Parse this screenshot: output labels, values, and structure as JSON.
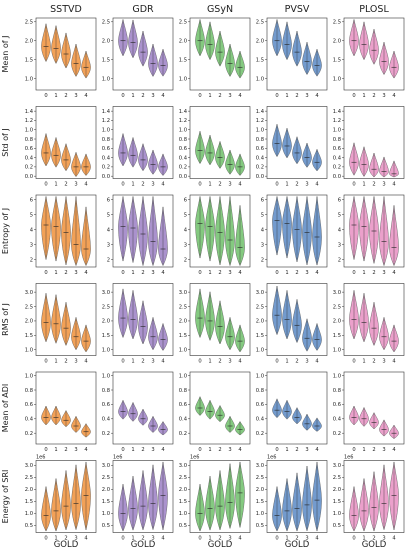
{
  "figure": {
    "columns": [
      "SSTVD",
      "GDR",
      "GSyN",
      "PVSV",
      "PLOSL"
    ],
    "rows": [
      "Mean of J",
      "Std of J",
      "Entropy of J",
      "RMS of J",
      "Mean of ADI",
      "Energy of SRI"
    ],
    "x_label": "GOLD",
    "x_ticks": [
      "0",
      "1",
      "2",
      "3",
      "4"
    ]
  },
  "colors": {
    "SSTVD": "#f0903a",
    "GDR": "#9b7fc4",
    "GSyN": "#6fbf6a",
    "PVSV": "#5b8ac6",
    "PLOSL": "#e78fc2"
  },
  "chart_data": {
    "type": "violin",
    "columns": [
      "SSTVD",
      "GDR",
      "GSyN",
      "PVSV",
      "PLOSL"
    ],
    "categories": [
      "0",
      "1",
      "2",
      "3",
      "4"
    ],
    "xlabel": "GOLD",
    "rows": [
      {
        "ylabel": "Mean of J",
        "ylim": [
          0.7,
          2.6
        ],
        "yticks": [
          "1.0",
          "1.5",
          "2.0",
          "2.5"
        ],
        "yticks_num": [
          1.0,
          1.5,
          2.0,
          2.5
        ],
        "series": {
          "SSTVD": [
            1.85,
            1.8,
            1.65,
            1.4,
            1.3
          ],
          "GDR": [
            2.0,
            1.95,
            1.7,
            1.4,
            1.35
          ],
          "GSyN": [
            2.0,
            1.9,
            1.7,
            1.4,
            1.3
          ],
          "PVSV": [
            2.0,
            1.9,
            1.7,
            1.45,
            1.35
          ],
          "PLOSL": [
            2.0,
            1.9,
            1.75,
            1.45,
            1.3
          ]
        },
        "spread": [
          0.7,
          0.7,
          0.65,
          0.6,
          0.5
        ]
      },
      {
        "ylabel": "Std of J",
        "ylim": [
          -0.05,
          1.5
        ],
        "yticks": [
          "0.0",
          "0.2",
          "0.4",
          "0.6",
          "0.8",
          "1.0",
          "1.2",
          "1.4"
        ],
        "yticks_num": [
          0.0,
          0.2,
          0.4,
          0.6,
          0.8,
          1.0,
          1.2,
          1.4
        ],
        "series": {
          "SSTVD": [
            0.5,
            0.45,
            0.35,
            0.2,
            0.2
          ],
          "GDR": [
            0.5,
            0.45,
            0.35,
            0.25,
            0.2
          ],
          "GSyN": [
            0.55,
            0.5,
            0.4,
            0.25,
            0.2
          ],
          "PVSV": [
            0.7,
            0.65,
            0.5,
            0.4,
            0.3
          ],
          "PLOSL": [
            0.3,
            0.25,
            0.15,
            0.1,
            0.05
          ]
        },
        "spread": [
          0.6,
          0.55,
          0.5,
          0.45,
          0.4
        ]
      },
      {
        "ylabel": "Entropy of J",
        "ylim": [
          1.5,
          6.3
        ],
        "yticks": [
          "2",
          "3",
          "4",
          "5",
          "6"
        ],
        "yticks_num": [
          2,
          3,
          4,
          5,
          6
        ],
        "series": {
          "SSTVD": [
            4.3,
            4.2,
            3.8,
            3.0,
            2.7
          ],
          "GDR": [
            4.2,
            4.1,
            3.7,
            3.2,
            2.7
          ],
          "GSyN": [
            4.4,
            4.2,
            3.8,
            3.3,
            2.8
          ],
          "PVSV": [
            4.6,
            4.4,
            4.0,
            3.8,
            3.5
          ],
          "PLOSL": [
            4.3,
            4.2,
            3.9,
            3.2,
            2.8
          ]
        },
        "spread": [
          1.6,
          1.6,
          1.5,
          1.5,
          1.3
        ]
      },
      {
        "ylabel": "RMS of J",
        "ylim": [
          0.8,
          3.3
        ],
        "yticks": [
          "1.0",
          "1.5",
          "2.0",
          "2.5",
          "3.0"
        ],
        "yticks_num": [
          1.0,
          1.5,
          2.0,
          2.5,
          3.0
        ],
        "series": {
          "SSTVD": [
            1.95,
            1.9,
            1.75,
            1.45,
            1.3
          ],
          "GDR": [
            2.1,
            2.05,
            1.8,
            1.45,
            1.35
          ],
          "GSyN": [
            2.1,
            2.0,
            1.8,
            1.45,
            1.3
          ],
          "PVSV": [
            2.2,
            2.05,
            1.85,
            1.4,
            1.35
          ],
          "PLOSL": [
            2.05,
            1.95,
            1.75,
            1.45,
            1.3
          ]
        },
        "spread": [
          0.9,
          0.9,
          0.8,
          0.6,
          0.5
        ]
      },
      {
        "ylabel": "Mean of ADI",
        "ylim": [
          0.05,
          1.05
        ],
        "yticks": [
          "0.2",
          "0.4",
          "0.6",
          "0.8",
          "1.0"
        ],
        "yticks_num": [
          0.2,
          0.4,
          0.6,
          0.8,
          1.0
        ],
        "series": {
          "SSTVD": [
            0.42,
            0.42,
            0.38,
            0.3,
            0.22
          ],
          "GDR": [
            0.5,
            0.47,
            0.4,
            0.3,
            0.25
          ],
          "GSyN": [
            0.55,
            0.5,
            0.45,
            0.3,
            0.25
          ],
          "PVSV": [
            0.52,
            0.5,
            0.42,
            0.33,
            0.3
          ],
          "PLOSL": [
            0.42,
            0.4,
            0.35,
            0.25,
            0.2
          ]
        },
        "spread": [
          0.35,
          0.35,
          0.3,
          0.3,
          0.25
        ]
      },
      {
        "ylabel": "Energy of SRI",
        "ylim": [
          0.2,
          3.2
        ],
        "yticks": [
          "0.5",
          "1.0",
          "1.5",
          "2.0",
          "2.5",
          "3.0"
        ],
        "yticks_num": [
          0.5,
          1.0,
          1.5,
          2.0,
          2.5,
          3.0
        ],
        "sci_label": "1e6",
        "series": {
          "SSTVD": [
            0.9,
            1.1,
            1.3,
            1.4,
            1.75
          ],
          "GDR": [
            1.0,
            1.2,
            1.3,
            1.4,
            1.75
          ],
          "GSyN": [
            1.0,
            1.2,
            1.3,
            1.45,
            1.85
          ],
          "PVSV": [
            0.9,
            1.1,
            1.2,
            1.35,
            1.55
          ],
          "PLOSL": [
            0.9,
            1.1,
            1.25,
            1.4,
            1.75
          ]
        },
        "spread": [
          0.9,
          1.0,
          1.1,
          1.2,
          1.6
        ]
      }
    ]
  }
}
